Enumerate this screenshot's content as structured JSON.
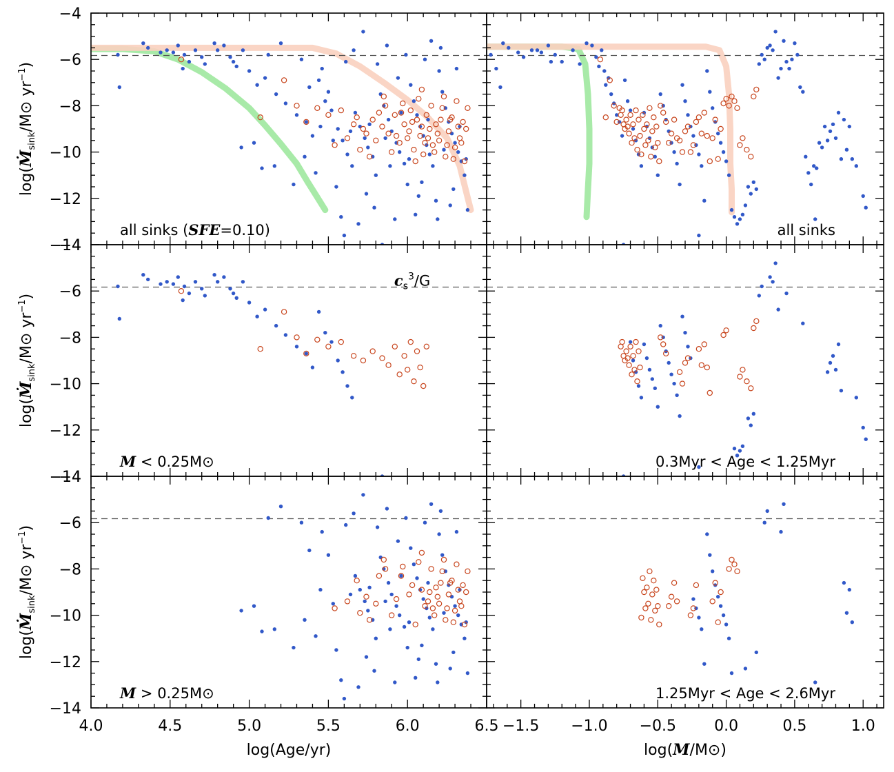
{
  "chart_data": {
    "type": "scatter",
    "layout": "3x2 panel grid",
    "ylabel": "log(Ṁ_sink/M⊙ yr⁻¹)",
    "ylim": [
      -14,
      -4
    ],
    "yticks": [
      "-4",
      "-6",
      "-8",
      "-10",
      "-12",
      "-14"
    ],
    "reference_line_y": -5.83,
    "columns": [
      {
        "xlabel": "log(Age/yr)",
        "xlim": [
          4.0,
          6.5
        ],
        "xticks": [
          "4.0",
          "4.5",
          "5.0",
          "5.5",
          "6.0",
          "6.5"
        ]
      },
      {
        "xlabel": "log(M/M⊙)",
        "xlim": [
          -1.75,
          1.15
        ],
        "xticks": [
          "−1.5",
          "−1.0",
          "−0.5",
          "0.0",
          "0.5",
          "1.0"
        ]
      }
    ],
    "panels": [
      {
        "row": 0,
        "col": 0,
        "annotation": "all sinks (SFE=0.10)",
        "annotation_parts": [
          "all sinks (",
          "SFE",
          "=0.10)"
        ],
        "annotation_position": "bottom-left",
        "population": "all",
        "tracks": [
          {
            "color": "#9ee89e",
            "points": [
              [
                4.0,
                -5.55
              ],
              [
                4.2,
                -5.55
              ],
              [
                4.4,
                -5.65
              ],
              [
                4.55,
                -6.0
              ],
              [
                4.7,
                -6.55
              ],
              [
                4.85,
                -7.25
              ],
              [
                5.0,
                -8.1
              ],
              [
                5.1,
                -8.85
              ],
              [
                5.2,
                -9.65
              ],
              [
                5.3,
                -10.5
              ],
              [
                5.37,
                -11.3
              ],
              [
                5.43,
                -11.95
              ],
              [
                5.48,
                -12.5
              ]
            ]
          },
          {
            "color": "#f9d0bf",
            "points": [
              [
                4.0,
                -5.5
              ],
              [
                4.5,
                -5.5
              ],
              [
                5.0,
                -5.5
              ],
              [
                5.4,
                -5.5
              ],
              [
                5.55,
                -5.75
              ],
              [
                5.7,
                -6.3
              ],
              [
                5.85,
                -7.0
              ],
              [
                6.0,
                -7.75
              ],
              [
                6.12,
                -8.45
              ],
              [
                6.25,
                -9.4
              ],
              [
                6.33,
                -10.6
              ],
              [
                6.37,
                -11.7
              ],
              [
                6.4,
                -12.5
              ]
            ]
          }
        ]
      },
      {
        "row": 0,
        "col": 1,
        "annotation": "all sinks",
        "annotation_position": "bottom-right",
        "population": "all",
        "tracks": [
          {
            "color": "#9ee89e",
            "points": [
              [
                -1.75,
                -5.45
              ],
              [
                -1.45,
                -5.45
              ],
              [
                -1.2,
                -5.45
              ],
              [
                -1.08,
                -5.55
              ],
              [
                -1.03,
                -6.2
              ],
              [
                -1.01,
                -7.5
              ],
              [
                -1.0,
                -9.0
              ],
              [
                -1.0,
                -10.5
              ],
              [
                -1.01,
                -11.6
              ],
              [
                -1.02,
                -12.8
              ]
            ]
          },
          {
            "color": "#f9d0bf",
            "points": [
              [
                -1.75,
                -5.45
              ],
              [
                -1.2,
                -5.45
              ],
              [
                -0.6,
                -5.45
              ],
              [
                -0.15,
                -5.45
              ],
              [
                -0.05,
                -5.6
              ],
              [
                0.0,
                -6.3
              ],
              [
                0.02,
                -7.5
              ],
              [
                0.03,
                -9.0
              ],
              [
                0.03,
                -10.5
              ],
              [
                0.04,
                -11.6
              ],
              [
                0.04,
                -12.6
              ]
            ]
          }
        ]
      },
      {
        "row": 1,
        "col": 0,
        "annotation": "M < 0.25M⊙",
        "annotation_parts": [
          "M",
          " < 0.25M⊙"
        ],
        "annotation_position": "bottom-left",
        "population": "low-mass",
        "reference_label": "cs³/G",
        "reference_label_parts": [
          "c",
          "s",
          "3",
          "/G"
        ]
      },
      {
        "row": 1,
        "col": 1,
        "annotation": "0.3Myr < Age < 1.25Myr",
        "annotation_position": "bottom-right",
        "population": "middle-age"
      },
      {
        "row": 2,
        "col": 0,
        "annotation": "M > 0.25M⊙",
        "annotation_parts": [
          "M",
          " > 0.25M⊙"
        ],
        "annotation_position": "bottom-left",
        "population": "high-mass"
      },
      {
        "row": 2,
        "col": 1,
        "annotation": "1.25Myr < Age < 2.6Myr",
        "annotation_position": "bottom-right",
        "population": "old-age"
      }
    ],
    "series": [
      {
        "marker": "filled circle",
        "color": "#3158c8"
      },
      {
        "marker": "open circle",
        "color": "#c8461e"
      }
    ],
    "sinks_filled": [
      [
        4.17,
        -5.8,
        -1.72
      ],
      [
        4.18,
        -7.2,
        -1.65
      ],
      [
        4.33,
        -5.3,
        -1.63
      ],
      [
        4.36,
        -5.5,
        -1.59
      ],
      [
        4.44,
        -5.7,
        -1.52
      ],
      [
        4.48,
        -5.6,
        -1.42
      ],
      [
        4.52,
        -5.7,
        -1.35
      ],
      [
        4.55,
        -5.4,
        -1.3
      ],
      [
        4.59,
        -5.8,
        -1.25
      ],
      [
        4.62,
        -6.1,
        -1.2
      ],
      [
        4.66,
        -5.6,
        -1.12
      ],
      [
        4.72,
        -6.2,
        -1.07
      ],
      [
        4.78,
        -5.3,
        -1.02
      ],
      [
        4.84,
        -5.4,
        -0.98
      ],
      [
        4.88,
        -5.9,
        -0.95
      ],
      [
        4.92,
        -6.3,
        -0.93
      ],
      [
        4.96,
        -5.6,
        -0.91
      ],
      [
        5.0,
        -6.5,
        -0.89
      ],
      [
        5.05,
        -7.1,
        -0.88
      ],
      [
        5.1,
        -6.8,
        -0.86
      ],
      [
        5.17,
        -7.5,
        -0.84
      ],
      [
        5.23,
        -7.9,
        -0.82
      ],
      [
        5.3,
        -8.4,
        -0.8
      ],
      [
        5.36,
        -8.7,
        -0.78
      ],
      [
        5.4,
        -9.3,
        -0.76
      ],
      [
        5.44,
        -6.9,
        -0.74
      ],
      [
        5.48,
        -7.8,
        -0.72
      ],
      [
        5.52,
        -8.2,
        -0.7
      ],
      [
        5.56,
        -9.0,
        -0.68
      ],
      [
        5.59,
        -9.5,
        -0.66
      ],
      [
        5.62,
        -10.1,
        -0.64
      ],
      [
        5.65,
        -10.6,
        -0.62
      ],
      [
        5.67,
        -8.3,
        -0.6
      ],
      [
        5.7,
        -8.9,
        -0.58
      ],
      [
        5.73,
        -9.4,
        -0.56
      ],
      [
        5.75,
        -9.8,
        -0.54
      ],
      [
        5.78,
        -10.2,
        -0.52
      ],
      [
        5.8,
        -11.0,
        -0.5
      ],
      [
        5.83,
        -7.5,
        -0.48
      ],
      [
        5.85,
        -8.0,
        -0.46
      ],
      [
        5.88,
        -8.6,
        -0.44
      ],
      [
        5.9,
        -9.1,
        -0.42
      ],
      [
        5.93,
        -9.6,
        -0.4
      ],
      [
        5.95,
        -10.0,
        -0.38
      ],
      [
        5.98,
        -10.5,
        -0.36
      ],
      [
        6.0,
        -11.4,
        -0.34
      ],
      [
        6.02,
        -7.1,
        -0.32
      ],
      [
        6.04,
        -7.8,
        -0.3
      ],
      [
        6.06,
        -8.4,
        -0.28
      ],
      [
        6.08,
        -8.9,
        -0.26
      ],
      [
        6.1,
        -9.3,
        -0.24
      ],
      [
        6.12,
        -9.7,
        -0.22
      ],
      [
        6.14,
        -10.1,
        -0.2
      ],
      [
        6.16,
        -10.6,
        -0.18
      ],
      [
        6.18,
        -12.1,
        -0.16
      ],
      [
        6.2,
        -6.5,
        -0.14
      ],
      [
        6.22,
        -7.4,
        -0.12
      ],
      [
        6.24,
        -8.1,
        -0.1
      ],
      [
        6.26,
        -8.7,
        -0.08
      ],
      [
        6.28,
        -9.2,
        -0.06
      ],
      [
        6.3,
        -9.6,
        -0.04
      ],
      [
        6.32,
        -10.0,
        -0.02
      ],
      [
        6.34,
        -10.4,
        0.0
      ],
      [
        6.36,
        -11.0,
        0.02
      ],
      [
        6.38,
        -12.5,
        0.04
      ],
      [
        5.58,
        -12.8,
        0.06
      ],
      [
        5.69,
        -13.1,
        0.08
      ],
      [
        5.92,
        -12.9,
        0.1
      ],
      [
        6.05,
        -12.7,
        0.12
      ],
      [
        6.27,
        -12.3,
        0.14
      ],
      [
        5.55,
        -11.5,
        0.16
      ],
      [
        5.74,
        -11.8,
        0.18
      ],
      [
        6.09,
        -11.3,
        0.2
      ],
      [
        6.29,
        -11.6,
        0.22
      ],
      [
        5.81,
        -6.2,
        0.24
      ],
      [
        5.99,
        -5.8,
        0.26
      ],
      [
        6.11,
        -6.0,
        0.28
      ],
      [
        6.21,
        -5.5,
        0.3
      ],
      [
        5.87,
        -5.4,
        0.32
      ],
      [
        5.66,
        -5.6,
        0.34
      ],
      [
        5.72,
        -4.8,
        0.36
      ],
      [
        5.94,
        -6.8,
        0.38
      ],
      [
        6.31,
        -6.4,
        0.4
      ],
      [
        6.15,
        -5.2,
        0.42
      ],
      [
        5.61,
        -6.1,
        0.44
      ],
      [
        5.46,
        -6.4,
        0.46
      ],
      [
        5.33,
        -6.0,
        0.48
      ],
      [
        5.2,
        -5.3,
        0.5
      ],
      [
        5.12,
        -5.8,
        0.52
      ],
      [
        5.38,
        -7.2,
        0.54
      ],
      [
        5.5,
        -7.4,
        0.56
      ],
      [
        5.35,
        -10.2,
        0.58
      ],
      [
        5.42,
        -10.9,
        0.6
      ],
      [
        5.28,
        -11.4,
        0.62
      ],
      [
        5.16,
        -10.6,
        0.64
      ],
      [
        5.08,
        -10.7,
        0.66
      ],
      [
        5.03,
        -9.6,
        0.68
      ],
      [
        4.95,
        -9.8,
        0.7
      ],
      [
        5.45,
        -8.9,
        0.72
      ],
      [
        5.53,
        -9.5,
        0.74
      ],
      [
        5.64,
        -9.1,
        0.76
      ],
      [
        5.76,
        -8.8,
        0.78
      ],
      [
        5.86,
        -9.4,
        0.8
      ],
      [
        5.96,
        -8.3,
        0.82
      ],
      [
        6.01,
        -10.3,
        0.84
      ],
      [
        6.13,
        -8.6,
        0.86
      ],
      [
        6.23,
        -9.9,
        0.88
      ],
      [
        6.33,
        -8.9,
        0.9
      ],
      [
        6.37,
        -10.3,
        0.92
      ],
      [
        5.89,
        -10.6,
        0.95
      ],
      [
        6.07,
        -11.9,
        1.0
      ],
      [
        5.79,
        -12.4,
        1.02
      ],
      [
        6.19,
        -12.9,
        0.65
      ],
      [
        5.6,
        -13.6,
        -0.2
      ],
      [
        5.84,
        -14.0,
        -0.75
      ],
      [
        4.58,
        -6.4,
        -1.68
      ],
      [
        4.7,
        -5.9,
        -1.48
      ],
      [
        4.8,
        -5.6,
        -1.38
      ],
      [
        4.9,
        -6.1,
        -1.28
      ]
    ],
    "sinks_open": [
      [
        4.57,
        -6.0,
        -0.92
      ],
      [
        5.07,
        -8.5,
        -0.88
      ],
      [
        5.22,
        -6.9,
        -0.85
      ],
      [
        5.3,
        -8.0,
        -0.82
      ],
      [
        5.36,
        -8.7,
        -0.8
      ],
      [
        5.43,
        -8.1,
        -0.78
      ],
      [
        5.5,
        -8.4,
        -0.77
      ],
      [
        5.58,
        -8.2,
        -0.76
      ],
      [
        5.66,
        -8.8,
        -0.75
      ],
      [
        5.72,
        -9.0,
        -0.74
      ],
      [
        5.78,
        -8.6,
        -0.73
      ],
      [
        5.84,
        -8.9,
        -0.72
      ],
      [
        5.88,
        -9.2,
        -0.71
      ],
      [
        5.92,
        -8.4,
        -0.7
      ],
      [
        5.95,
        -9.6,
        -0.69
      ],
      [
        5.98,
        -8.8,
        -0.68
      ],
      [
        6.0,
        -9.4,
        -0.67
      ],
      [
        6.02,
        -8.2,
        -0.66
      ],
      [
        6.04,
        -9.9,
        -0.65
      ],
      [
        6.06,
        -8.6,
        -0.64
      ],
      [
        6.08,
        -9.3,
        -0.63
      ],
      [
        6.1,
        -10.1,
        -0.62
      ],
      [
        6.12,
        -8.4,
        -0.61
      ],
      [
        6.14,
        -9.0,
        -0.6
      ],
      [
        6.16,
        -9.7,
        -0.59
      ],
      [
        6.18,
        -8.8,
        -0.58
      ],
      [
        6.2,
        -9.5,
        -0.57
      ],
      [
        6.22,
        -8.1,
        -0.56
      ],
      [
        6.24,
        -10.2,
        -0.55
      ],
      [
        6.26,
        -9.1,
        -0.54
      ],
      [
        6.28,
        -8.5,
        -0.53
      ],
      [
        6.3,
        -9.8,
        -0.52
      ],
      [
        6.32,
        -8.9,
        -0.51
      ],
      [
        6.34,
        -9.6,
        -0.5
      ],
      [
        6.36,
        -10.4,
        -0.49
      ],
      [
        5.86,
        -8.0,
        -0.48
      ],
      [
        5.96,
        -8.3,
        -0.46
      ],
      [
        6.03,
        -8.7,
        -0.44
      ],
      [
        6.11,
        -9.6,
        -0.42
      ],
      [
        6.19,
        -9.2,
        -0.4
      ],
      [
        6.27,
        -8.6,
        -0.38
      ],
      [
        6.33,
        -9.4,
        -0.36
      ],
      [
        5.8,
        -9.5,
        -0.34
      ],
      [
        5.9,
        -10.0,
        -0.32
      ],
      [
        6.01,
        -9.1,
        -0.3
      ],
      [
        6.09,
        -8.9,
        -0.28
      ],
      [
        6.17,
        -10.0,
        -0.26
      ],
      [
        6.25,
        -9.7,
        -0.24
      ],
      [
        6.35,
        -8.7,
        -0.22
      ],
      [
        5.68,
        -8.5,
        -0.2
      ],
      [
        5.74,
        -9.2,
        -0.18
      ],
      [
        5.82,
        -8.3,
        -0.16
      ],
      [
        5.93,
        -9.3,
        -0.14
      ],
      [
        6.05,
        -10.4,
        -0.12
      ],
      [
        6.13,
        -9.4,
        -0.1
      ],
      [
        6.21,
        -8.6,
        -0.08
      ],
      [
        6.29,
        -10.3,
        -0.06
      ],
      [
        6.37,
        -9.0,
        -0.04
      ],
      [
        5.97,
        -7.9,
        -0.02
      ],
      [
        6.07,
        -7.7,
        0.0
      ],
      [
        6.15,
        -8.0,
        0.02
      ],
      [
        6.23,
        -7.6,
        0.04
      ],
      [
        6.31,
        -7.8,
        0.06
      ],
      [
        6.38,
        -8.1,
        0.08
      ],
      [
        5.54,
        -9.7,
        0.1
      ],
      [
        5.62,
        -9.4,
        0.12
      ],
      [
        5.7,
        -9.9,
        0.15
      ],
      [
        5.76,
        -10.2,
        0.18
      ],
      [
        5.85,
        -7.6,
        0.2
      ],
      [
        6.09,
        -7.3,
        0.22
      ]
    ]
  }
}
